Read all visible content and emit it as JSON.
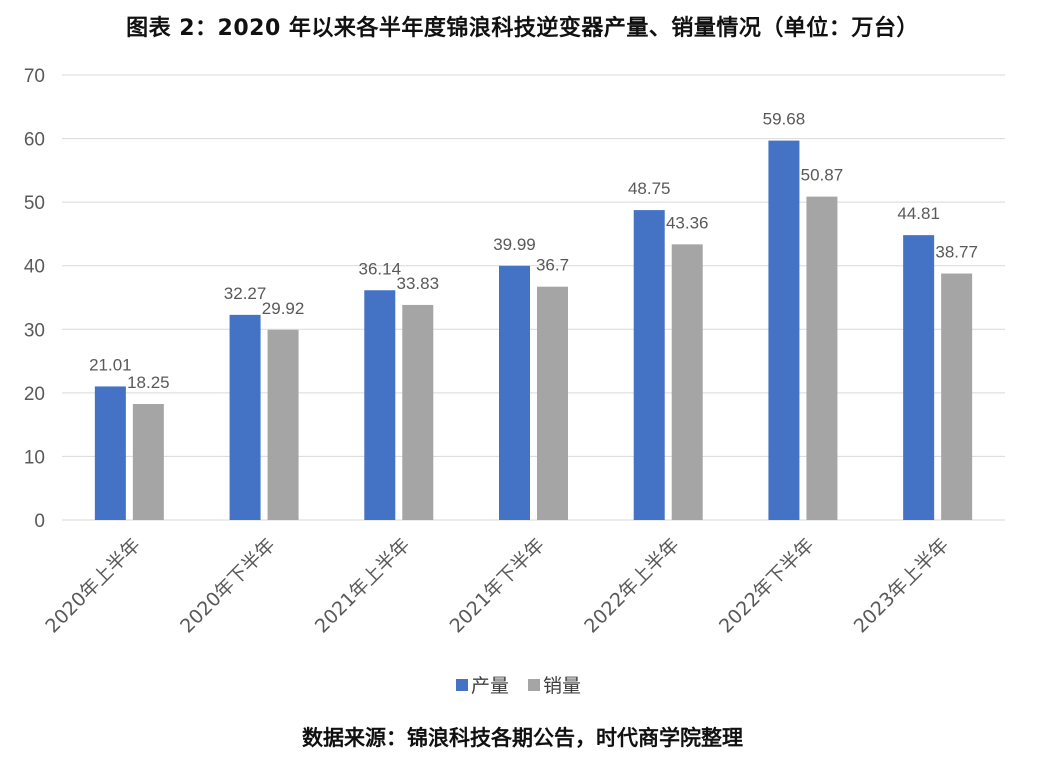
{
  "chart_data": {
    "type": "bar",
    "title": "图表 2：2020 年以来各半年度锦浪科技逆变器产量、销量情况（单位：万台）",
    "source": "数据来源：锦浪科技各期公告，时代商学院整理",
    "categories": [
      "2020年上半年",
      "2020年下半年",
      "2021年上半年",
      "2021年下半年",
      "2022年上半年",
      "2022年下半年",
      "2023年上半年"
    ],
    "series": [
      {
        "name": "产量",
        "color": "#4472C4",
        "values": [
          21.01,
          32.27,
          36.14,
          39.99,
          48.75,
          59.68,
          44.81
        ]
      },
      {
        "name": "销量",
        "color": "#A5A5A5",
        "values": [
          18.25,
          29.92,
          33.83,
          36.7,
          43.36,
          50.87,
          38.77
        ]
      }
    ],
    "ylim": [
      0,
      70
    ],
    "yticks": [
      0,
      10,
      20,
      30,
      40,
      50,
      60,
      70
    ],
    "grid": true,
    "legend": "bottom"
  }
}
